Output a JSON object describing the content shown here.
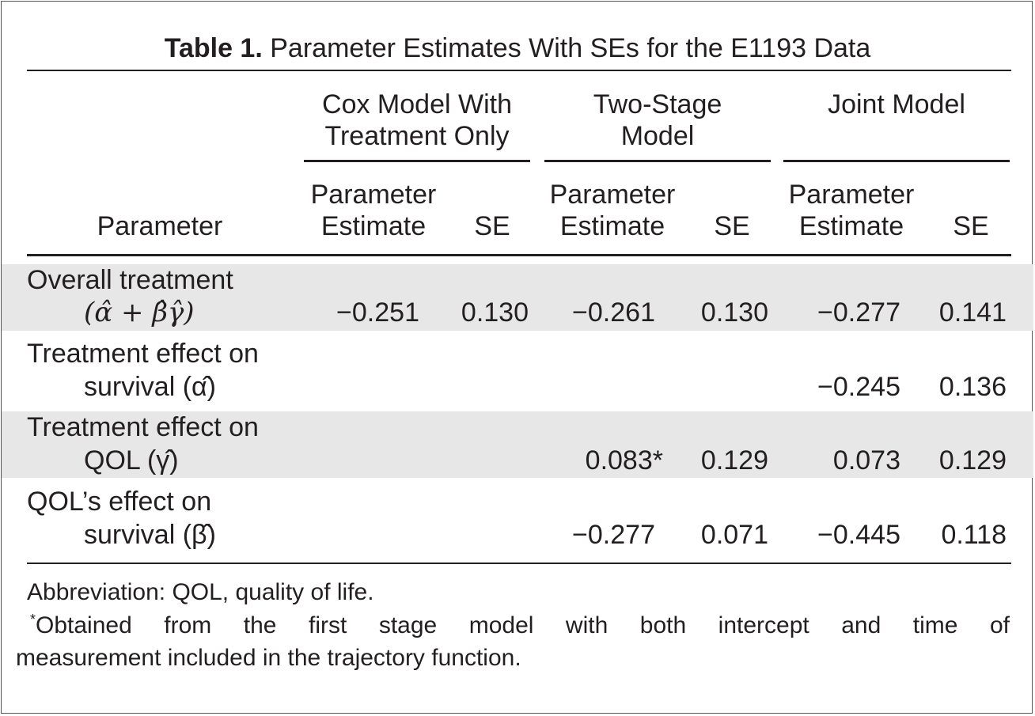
{
  "table": {
    "label": "Table 1.",
    "caption": "Parameter Estimates With SEs for the E1193 Data",
    "groups": [
      {
        "line1": "Cox Model With",
        "line2": "Treatment Only"
      },
      {
        "line1": "Two-Stage",
        "line2": "Model"
      },
      {
        "line1": "",
        "line2": "Joint Model"
      }
    ],
    "subheaders": {
      "parameter": "Parameter",
      "est_line1": "Parameter",
      "est_line2": "Estimate",
      "se": "SE"
    },
    "rows": [
      {
        "line1": "Overall treatment",
        "line2": "(α̂ + β̂γ̂)",
        "values": [
          "−0.251",
          "0.130",
          "−0.261",
          "0.130",
          "−0.277",
          "0.141"
        ],
        "shaded": true
      },
      {
        "line1": "Treatment effect on",
        "line2": "survival (α̂)",
        "values": [
          "",
          "",
          "",
          "",
          "−0.245",
          "0.136"
        ],
        "shaded": false
      },
      {
        "line1": "Treatment effect on",
        "line2": "QOL (γ̂)",
        "values": [
          "",
          "",
          "0.083*",
          "0.129",
          "0.073",
          "0.129"
        ],
        "shaded": true
      },
      {
        "line1": "QOL’s effect on",
        "line2": "survival (β̂)",
        "values": [
          "",
          "",
          "−0.277",
          "0.071",
          "−0.445",
          "0.118"
        ],
        "shaded": false
      }
    ],
    "footnotes": {
      "abbreviation": "Abbreviation: QOL, quality of life.",
      "star_marker": "*",
      "star_line1": "Obtained from the first stage model with both intercept and time of",
      "star_line2": "measurement included in the trajectory function."
    }
  }
}
